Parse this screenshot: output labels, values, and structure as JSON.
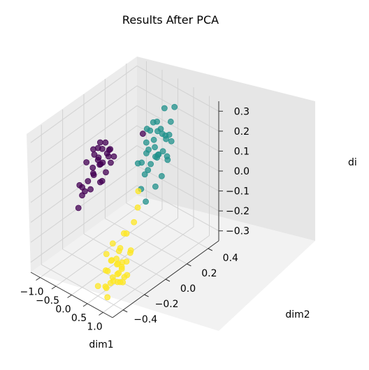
{
  "chart_data": {
    "type": "scatter",
    "title": "Results After PCA",
    "xlabel": "dim1",
    "ylabel": "dim2",
    "zlabel": "di",
    "xticks": [
      "−1.0",
      "−0.5",
      "0.0",
      "0.5",
      "1.0"
    ],
    "yticks": [
      "−0.4",
      "−0.2",
      "0.0",
      "0.2",
      "0.4"
    ],
    "zticks": [
      "−0.3",
      "−0.2",
      "−0.1",
      "0.0",
      "0.1",
      "0.2",
      "0.3"
    ],
    "xlim": [
      -1.3,
      1.3
    ],
    "ylim": [
      -0.5,
      0.5
    ],
    "zlim": [
      -0.35,
      0.35
    ],
    "grid": true,
    "series": [
      {
        "color": "#440154",
        "points": [
          [
            -1.05,
            -0.05,
            0.05
          ],
          [
            -1.0,
            0.0,
            0.1
          ],
          [
            -0.95,
            -0.02,
            0.02
          ],
          [
            -0.9,
            0.02,
            0.06
          ],
          [
            -0.85,
            -0.04,
            0.0
          ],
          [
            -0.8,
            0.01,
            0.04
          ],
          [
            -0.75,
            -0.03,
            0.08
          ],
          [
            -0.9,
            -0.08,
            -0.02
          ],
          [
            -1.1,
            -0.1,
            -0.05
          ],
          [
            -1.15,
            -0.06,
            -0.08
          ],
          [
            -0.95,
            0.05,
            0.12
          ],
          [
            -0.85,
            0.04,
            0.1
          ],
          [
            -0.8,
            -0.06,
            0.02
          ],
          [
            -0.7,
            0.0,
            0.06
          ],
          [
            -1.0,
            0.06,
            0.0
          ],
          [
            -0.9,
            0.1,
            0.05
          ],
          [
            -1.05,
            0.08,
            -0.1
          ],
          [
            -0.75,
            -0.1,
            -0.04
          ],
          [
            -0.95,
            -0.12,
            -0.08
          ],
          [
            -0.85,
            0.12,
            0.0
          ],
          [
            -1.2,
            -0.02,
            -0.12
          ],
          [
            -0.7,
            0.06,
            0.1
          ],
          [
            -0.8,
            0.1,
            0.08
          ],
          [
            -0.9,
            -0.02,
            0.09
          ],
          [
            -1.0,
            -0.14,
            -0.14
          ],
          [
            -0.6,
            0.0,
            0.02
          ],
          [
            -0.65,
            0.04,
            0.08
          ],
          [
            -0.85,
            0.0,
            0.12
          ],
          [
            -0.95,
            0.1,
            0.1
          ],
          [
            -0.75,
            0.12,
            0.04
          ],
          [
            -0.1,
            0.2,
            0.18
          ],
          [
            -0.55,
            -0.05,
            0.0
          ]
        ]
      },
      {
        "color": "#21918c",
        "points": [
          [
            0.3,
            0.2,
            0.1
          ],
          [
            0.25,
            0.15,
            0.15
          ],
          [
            0.35,
            0.25,
            0.2
          ],
          [
            0.3,
            0.1,
            0.05
          ],
          [
            0.4,
            0.2,
            0.12
          ],
          [
            0.2,
            0.25,
            0.2
          ],
          [
            0.45,
            0.3,
            0.25
          ],
          [
            0.3,
            0.15,
            0.25
          ],
          [
            0.35,
            0.05,
            0.0
          ],
          [
            0.25,
            0.3,
            0.3
          ],
          [
            0.5,
            0.25,
            0.1
          ],
          [
            0.4,
            0.1,
            0.08
          ],
          [
            0.2,
            0.1,
            0.1
          ],
          [
            0.3,
            0.3,
            0.15
          ],
          [
            0.45,
            0.15,
            0.18
          ],
          [
            0.35,
            0.2,
            0.28
          ],
          [
            0.15,
            0.2,
            0.05
          ],
          [
            0.5,
            0.05,
            -0.05
          ],
          [
            0.4,
            0.35,
            0.3
          ],
          [
            0.3,
            0.2,
            -0.05
          ],
          [
            0.25,
            0.05,
            0.12
          ],
          [
            0.35,
            0.3,
            0.05
          ],
          [
            0.2,
            0.15,
            0.25
          ],
          [
            0.45,
            0.25,
            0.2
          ],
          [
            0.3,
            0.25,
            0.22
          ],
          [
            0.4,
            0.15,
            0.3
          ],
          [
            0.35,
            0.1,
            0.16
          ],
          [
            0.25,
            0.2,
            0.18
          ],
          [
            0.5,
            0.2,
            0.02
          ],
          [
            0.3,
            0.35,
            0.12
          ],
          [
            0.55,
            0.15,
            0.15
          ],
          [
            0.2,
            0.3,
            0.08
          ],
          [
            0.4,
            0.3,
            0.18
          ],
          [
            0.35,
            0.2,
            0.1
          ],
          [
            0.28,
            0.12,
            0.2
          ]
        ]
      },
      {
        "color": "#fde725",
        "points": [
          [
            0.6,
            -0.3,
            -0.2
          ],
          [
            0.7,
            -0.25,
            -0.15
          ],
          [
            0.8,
            -0.35,
            -0.25
          ],
          [
            0.65,
            -0.2,
            -0.1
          ],
          [
            0.75,
            -0.3,
            -0.18
          ],
          [
            0.85,
            -0.28,
            -0.22
          ],
          [
            0.7,
            -0.38,
            -0.3
          ],
          [
            0.9,
            -0.32,
            -0.12
          ],
          [
            0.6,
            -0.2,
            -0.25
          ],
          [
            0.8,
            -0.22,
            -0.08
          ],
          [
            0.75,
            -0.4,
            -0.2
          ],
          [
            0.95,
            -0.3,
            -0.28
          ],
          [
            0.65,
            -0.3,
            -0.3
          ],
          [
            0.85,
            -0.38,
            -0.15
          ],
          [
            0.7,
            -0.15,
            -0.2
          ],
          [
            0.8,
            -0.28,
            -0.3
          ],
          [
            0.9,
            -0.25,
            -0.2
          ],
          [
            0.6,
            -0.35,
            -0.15
          ],
          [
            0.75,
            -0.25,
            -0.25
          ],
          [
            0.85,
            -0.2,
            -0.18
          ],
          [
            0.7,
            -0.32,
            -0.1
          ],
          [
            0.95,
            -0.35,
            -0.22
          ],
          [
            0.8,
            -0.3,
            -0.2
          ],
          [
            0.65,
            -0.25,
            -0.28
          ],
          [
            0.9,
            -0.4,
            -0.25
          ],
          [
            0.75,
            -0.2,
            -0.3
          ],
          [
            0.85,
            -0.32,
            -0.28
          ],
          [
            0.7,
            -0.28,
            -0.22
          ],
          [
            0.4,
            -0.3,
            -0.35
          ],
          [
            0.3,
            -0.25,
            -0.3
          ],
          [
            0.6,
            -0.05,
            0.05
          ],
          [
            0.75,
            -0.1,
            0.0
          ],
          [
            0.8,
            -0.15,
            -0.05
          ],
          [
            1.0,
            -0.3,
            -0.25
          ],
          [
            0.5,
            -0.4,
            -0.3
          ],
          [
            0.8,
            -0.4,
            -0.33
          ]
        ]
      }
    ]
  }
}
